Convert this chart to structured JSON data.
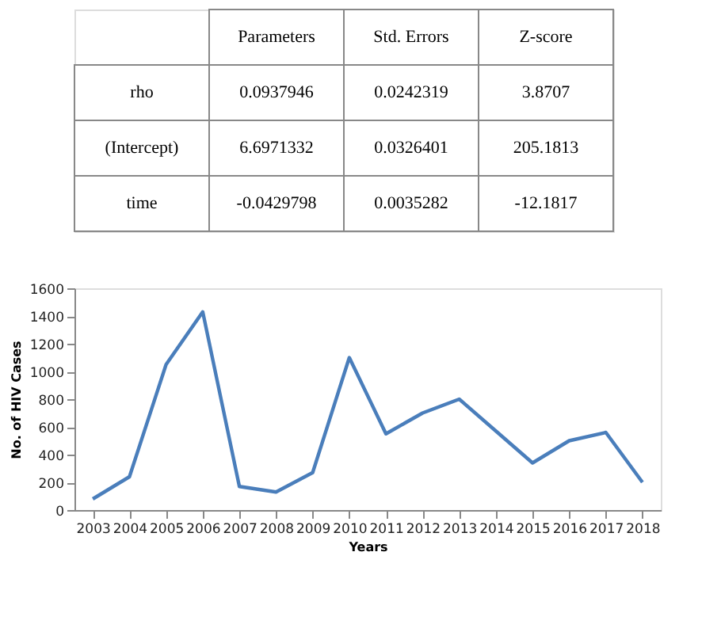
{
  "chart_data": [
    {
      "type": "other",
      "categories": [
        "Parameters",
        "Std. Errors",
        "Z-score"
      ],
      "y_categories": [
        "rho",
        "(Intercept)",
        "time"
      ],
      "cell_labels": [
        [
          "0.0937946",
          "0.0242319",
          "3.8707"
        ],
        [
          "6.6971332",
          "0.0326401",
          "205.1813"
        ],
        [
          "-0.0429798",
          "0.0035282",
          "-12.1817"
        ]
      ]
    },
    {
      "type": "line",
      "xlabel": "Years",
      "ylabel": "No. of HIV Cases",
      "categories": [
        "2003",
        "2004",
        "2005",
        "2006",
        "2007",
        "2008",
        "2009",
        "2010",
        "2011",
        "2012",
        "2013",
        "2014",
        "2015",
        "2016",
        "2017",
        "2018"
      ],
      "series": [
        {
          "color": "#4a7ebb",
          "values": [
            80,
            240,
            1050,
            1430,
            170,
            130,
            270,
            1100,
            550,
            700,
            800,
            570,
            340,
            500,
            560,
            200
          ]
        }
      ],
      "ylim": [
        0,
        1600
      ],
      "yticks": [
        0,
        200,
        400,
        600,
        800,
        1000,
        1200,
        1400,
        1600
      ],
      "grid": false,
      "legend": false,
      "line_style": "solid",
      "marker": "none"
    }
  ]
}
